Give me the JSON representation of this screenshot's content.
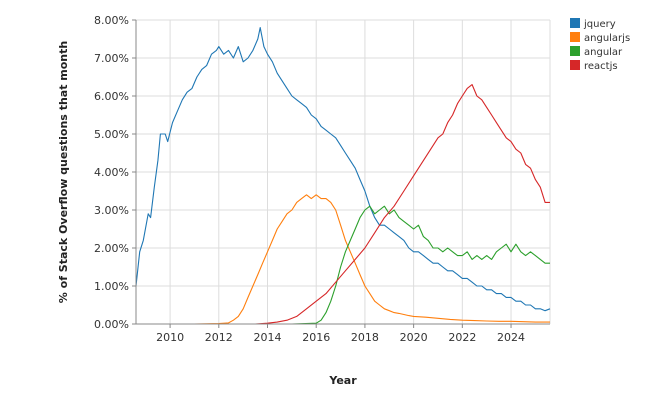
{
  "chart_data": {
    "type": "line",
    "title": "",
    "xlabel": "Year",
    "ylabel": "% of Stack Overflow questions that month",
    "xlim": [
      2008.6,
      2025.6
    ],
    "ylim": [
      0,
      8
    ],
    "x_ticks": [
      2010,
      2012,
      2014,
      2016,
      2018,
      2020,
      2022,
      2024
    ],
    "x_tick_labels": [
      "2010",
      "2012",
      "2014",
      "2016",
      "2018",
      "2020",
      "2022",
      "2024"
    ],
    "y_ticks": [
      0,
      1,
      2,
      3,
      4,
      5,
      6,
      7,
      8
    ],
    "y_tick_labels": [
      "0.00%",
      "1.00%",
      "2.00%",
      "3.00%",
      "4.00%",
      "5.00%",
      "6.00%",
      "7.00%",
      "8.00%"
    ],
    "grid": true,
    "legend_position": "top-right",
    "colors": {
      "jquery": "#1f77b4",
      "angularjs": "#ff7f0e",
      "angular": "#2ca02c",
      "reactjs": "#d62728"
    },
    "series": [
      {
        "name": "jquery",
        "points": [
          [
            2008.6,
            1.0
          ],
          [
            2008.75,
            1.9
          ],
          [
            2008.9,
            2.2
          ],
          [
            2009.1,
            2.9
          ],
          [
            2009.2,
            2.8
          ],
          [
            2009.35,
            3.6
          ],
          [
            2009.5,
            4.3
          ],
          [
            2009.6,
            5.0
          ],
          [
            2009.8,
            5.0
          ],
          [
            2009.9,
            4.8
          ],
          [
            2010.1,
            5.3
          ],
          [
            2010.3,
            5.6
          ],
          [
            2010.5,
            5.9
          ],
          [
            2010.7,
            6.1
          ],
          [
            2010.9,
            6.2
          ],
          [
            2011.1,
            6.5
          ],
          [
            2011.3,
            6.7
          ],
          [
            2011.5,
            6.8
          ],
          [
            2011.7,
            7.1
          ],
          [
            2011.9,
            7.2
          ],
          [
            2012.0,
            7.3
          ],
          [
            2012.2,
            7.1
          ],
          [
            2012.4,
            7.2
          ],
          [
            2012.6,
            7.0
          ],
          [
            2012.8,
            7.3
          ],
          [
            2013.0,
            6.9
          ],
          [
            2013.2,
            7.0
          ],
          [
            2013.4,
            7.2
          ],
          [
            2013.6,
            7.5
          ],
          [
            2013.7,
            7.8
          ],
          [
            2013.85,
            7.3
          ],
          [
            2014.0,
            7.1
          ],
          [
            2014.2,
            6.9
          ],
          [
            2014.4,
            6.6
          ],
          [
            2014.6,
            6.4
          ],
          [
            2014.8,
            6.2
          ],
          [
            2015.0,
            6.0
          ],
          [
            2015.2,
            5.9
          ],
          [
            2015.4,
            5.8
          ],
          [
            2015.6,
            5.7
          ],
          [
            2015.8,
            5.5
          ],
          [
            2016.0,
            5.4
          ],
          [
            2016.2,
            5.2
          ],
          [
            2016.4,
            5.1
          ],
          [
            2016.6,
            5.0
          ],
          [
            2016.8,
            4.9
          ],
          [
            2017.0,
            4.7
          ],
          [
            2017.2,
            4.5
          ],
          [
            2017.4,
            4.3
          ],
          [
            2017.6,
            4.1
          ],
          [
            2017.8,
            3.8
          ],
          [
            2018.0,
            3.5
          ],
          [
            2018.2,
            3.1
          ],
          [
            2018.4,
            2.8
          ],
          [
            2018.6,
            2.6
          ],
          [
            2018.8,
            2.6
          ],
          [
            2019.0,
            2.5
          ],
          [
            2019.2,
            2.4
          ],
          [
            2019.4,
            2.3
          ],
          [
            2019.6,
            2.2
          ],
          [
            2019.8,
            2.0
          ],
          [
            2020.0,
            1.9
          ],
          [
            2020.2,
            1.9
          ],
          [
            2020.4,
            1.8
          ],
          [
            2020.6,
            1.7
          ],
          [
            2020.8,
            1.6
          ],
          [
            2021.0,
            1.6
          ],
          [
            2021.2,
            1.5
          ],
          [
            2021.4,
            1.4
          ],
          [
            2021.6,
            1.4
          ],
          [
            2021.8,
            1.3
          ],
          [
            2022.0,
            1.2
          ],
          [
            2022.2,
            1.2
          ],
          [
            2022.4,
            1.1
          ],
          [
            2022.6,
            1.0
          ],
          [
            2022.8,
            1.0
          ],
          [
            2023.0,
            0.9
          ],
          [
            2023.2,
            0.9
          ],
          [
            2023.4,
            0.8
          ],
          [
            2023.6,
            0.8
          ],
          [
            2023.8,
            0.7
          ],
          [
            2024.0,
            0.7
          ],
          [
            2024.2,
            0.6
          ],
          [
            2024.4,
            0.6
          ],
          [
            2024.6,
            0.5
          ],
          [
            2024.8,
            0.5
          ],
          [
            2025.0,
            0.4
          ],
          [
            2025.2,
            0.4
          ],
          [
            2025.4,
            0.35
          ],
          [
            2025.6,
            0.4
          ]
        ]
      },
      {
        "name": "angularjs",
        "points": [
          [
            2008.6,
            0.0
          ],
          [
            2009.0,
            0.0
          ],
          [
            2010.0,
            0.0
          ],
          [
            2011.0,
            0.0
          ],
          [
            2012.0,
            0.01
          ],
          [
            2012.4,
            0.03
          ],
          [
            2012.6,
            0.1
          ],
          [
            2012.8,
            0.2
          ],
          [
            2013.0,
            0.4
          ],
          [
            2013.2,
            0.7
          ],
          [
            2013.4,
            1.0
          ],
          [
            2013.6,
            1.3
          ],
          [
            2013.8,
            1.6
          ],
          [
            2014.0,
            1.9
          ],
          [
            2014.2,
            2.2
          ],
          [
            2014.4,
            2.5
          ],
          [
            2014.6,
            2.7
          ],
          [
            2014.8,
            2.9
          ],
          [
            2015.0,
            3.0
          ],
          [
            2015.2,
            3.2
          ],
          [
            2015.4,
            3.3
          ],
          [
            2015.6,
            3.4
          ],
          [
            2015.8,
            3.3
          ],
          [
            2016.0,
            3.4
          ],
          [
            2016.2,
            3.3
          ],
          [
            2016.4,
            3.3
          ],
          [
            2016.6,
            3.2
          ],
          [
            2016.8,
            3.0
          ],
          [
            2017.0,
            2.6
          ],
          [
            2017.2,
            2.2
          ],
          [
            2017.4,
            1.9
          ],
          [
            2017.6,
            1.6
          ],
          [
            2017.8,
            1.3
          ],
          [
            2018.0,
            1.0
          ],
          [
            2018.2,
            0.8
          ],
          [
            2018.4,
            0.6
          ],
          [
            2018.6,
            0.5
          ],
          [
            2018.8,
            0.4
          ],
          [
            2019.0,
            0.35
          ],
          [
            2019.2,
            0.3
          ],
          [
            2019.4,
            0.28
          ],
          [
            2019.6,
            0.25
          ],
          [
            2019.8,
            0.22
          ],
          [
            2020.0,
            0.2
          ],
          [
            2020.5,
            0.18
          ],
          [
            2021.0,
            0.15
          ],
          [
            2021.5,
            0.12
          ],
          [
            2022.0,
            0.1
          ],
          [
            2022.5,
            0.09
          ],
          [
            2023.0,
            0.08
          ],
          [
            2023.5,
            0.07
          ],
          [
            2024.0,
            0.07
          ],
          [
            2024.5,
            0.06
          ],
          [
            2025.0,
            0.05
          ],
          [
            2025.6,
            0.05
          ]
        ]
      },
      {
        "name": "angular",
        "points": [
          [
            2008.6,
            0.0
          ],
          [
            2010.0,
            0.0
          ],
          [
            2012.0,
            0.0
          ],
          [
            2014.0,
            0.0
          ],
          [
            2015.0,
            0.0
          ],
          [
            2016.0,
            0.02
          ],
          [
            2016.2,
            0.1
          ],
          [
            2016.4,
            0.3
          ],
          [
            2016.6,
            0.6
          ],
          [
            2016.8,
            1.0
          ],
          [
            2017.0,
            1.5
          ],
          [
            2017.2,
            1.9
          ],
          [
            2017.4,
            2.2
          ],
          [
            2017.6,
            2.5
          ],
          [
            2017.8,
            2.8
          ],
          [
            2018.0,
            3.0
          ],
          [
            2018.2,
            3.1
          ],
          [
            2018.4,
            2.9
          ],
          [
            2018.6,
            3.0
          ],
          [
            2018.8,
            3.1
          ],
          [
            2019.0,
            2.9
          ],
          [
            2019.2,
            3.0
          ],
          [
            2019.4,
            2.8
          ],
          [
            2019.6,
            2.7
          ],
          [
            2019.8,
            2.6
          ],
          [
            2020.0,
            2.5
          ],
          [
            2020.2,
            2.6
          ],
          [
            2020.4,
            2.3
          ],
          [
            2020.6,
            2.2
          ],
          [
            2020.8,
            2.0
          ],
          [
            2021.0,
            2.0
          ],
          [
            2021.2,
            1.9
          ],
          [
            2021.4,
            2.0
          ],
          [
            2021.6,
            1.9
          ],
          [
            2021.8,
            1.8
          ],
          [
            2022.0,
            1.8
          ],
          [
            2022.2,
            1.9
          ],
          [
            2022.4,
            1.7
          ],
          [
            2022.6,
            1.8
          ],
          [
            2022.8,
            1.7
          ],
          [
            2023.0,
            1.8
          ],
          [
            2023.2,
            1.7
          ],
          [
            2023.4,
            1.9
          ],
          [
            2023.6,
            2.0
          ],
          [
            2023.8,
            2.1
          ],
          [
            2024.0,
            1.9
          ],
          [
            2024.2,
            2.1
          ],
          [
            2024.4,
            1.9
          ],
          [
            2024.6,
            1.8
          ],
          [
            2024.8,
            1.9
          ],
          [
            2025.0,
            1.8
          ],
          [
            2025.2,
            1.7
          ],
          [
            2025.4,
            1.6
          ],
          [
            2025.6,
            1.6
          ]
        ]
      },
      {
        "name": "reactjs",
        "points": [
          [
            2008.6,
            0.0
          ],
          [
            2010.0,
            0.0
          ],
          [
            2012.0,
            0.0
          ],
          [
            2013.5,
            0.0
          ],
          [
            2014.0,
            0.02
          ],
          [
            2014.4,
            0.05
          ],
          [
            2014.8,
            0.1
          ],
          [
            2015.2,
            0.2
          ],
          [
            2015.6,
            0.4
          ],
          [
            2016.0,
            0.6
          ],
          [
            2016.4,
            0.8
          ],
          [
            2016.8,
            1.1
          ],
          [
            2017.2,
            1.4
          ],
          [
            2017.6,
            1.7
          ],
          [
            2018.0,
            2.0
          ],
          [
            2018.4,
            2.4
          ],
          [
            2018.8,
            2.8
          ],
          [
            2019.2,
            3.1
          ],
          [
            2019.6,
            3.5
          ],
          [
            2020.0,
            3.9
          ],
          [
            2020.4,
            4.3
          ],
          [
            2020.8,
            4.7
          ],
          [
            2021.0,
            4.9
          ],
          [
            2021.2,
            5.0
          ],
          [
            2021.4,
            5.3
          ],
          [
            2021.6,
            5.5
          ],
          [
            2021.8,
            5.8
          ],
          [
            2022.0,
            6.0
          ],
          [
            2022.2,
            6.2
          ],
          [
            2022.4,
            6.3
          ],
          [
            2022.6,
            6.0
          ],
          [
            2022.8,
            5.9
          ],
          [
            2023.0,
            5.7
          ],
          [
            2023.2,
            5.5
          ],
          [
            2023.4,
            5.3
          ],
          [
            2023.6,
            5.1
          ],
          [
            2023.8,
            4.9
          ],
          [
            2024.0,
            4.8
          ],
          [
            2024.2,
            4.6
          ],
          [
            2024.4,
            4.5
          ],
          [
            2024.6,
            4.2
          ],
          [
            2024.8,
            4.1
          ],
          [
            2025.0,
            3.8
          ],
          [
            2025.2,
            3.6
          ],
          [
            2025.4,
            3.2
          ],
          [
            2025.6,
            3.2
          ]
        ]
      }
    ]
  }
}
